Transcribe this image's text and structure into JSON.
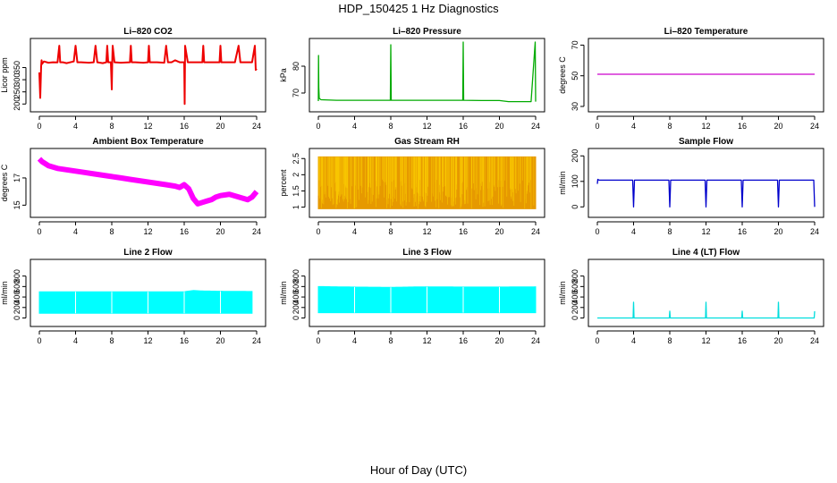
{
  "title": "HDP_150425  1 Hz Diagnostics",
  "xlabel": "Hour of Day (UTC)",
  "chart_data": [
    {
      "type": "line",
      "title": "Li–820 CO2",
      "ylabel": "Licor ppm",
      "color": "#ee0000",
      "xticks": [
        0,
        4,
        8,
        12,
        16,
        20,
        24
      ],
      "xlim": [
        0,
        24
      ],
      "yticks": [
        200,
        250,
        300,
        350
      ],
      "ylim": [
        190,
        455
      ],
      "series": [
        {
          "x": [
            0,
            0.1,
            0.2,
            0.25,
            0.3,
            0.5,
            1.0,
            1.5,
            2.0,
            2.2,
            2.3,
            2.6,
            3.0,
            3.8,
            4.0,
            4.2,
            4.6,
            5.5,
            6.0,
            6.2,
            6.4,
            7.0,
            7.4,
            7.5,
            7.6,
            7.9,
            8.0,
            8.05,
            8.1,
            8.3,
            9.0,
            10.0,
            10.1,
            10.2,
            10.6,
            11.5,
            12.0,
            12.1,
            12.2,
            13.0,
            13.8,
            14.0,
            14.2,
            14.6,
            15.0,
            15.5,
            16.0,
            16.05,
            16.1,
            16.4,
            17.0,
            18.0,
            18.1,
            18.2,
            19.0,
            19.9,
            20.0,
            20.1,
            20.5,
            21.0,
            21.6,
            22.0,
            22.2,
            22.8,
            23.5,
            23.8,
            23.9,
            24.0
          ],
          "y": [
            330,
            225,
            355,
            380,
            365,
            375,
            370,
            372,
            371,
            440,
            372,
            372,
            368,
            375,
            440,
            372,
            372,
            370,
            372,
            440,
            372,
            368,
            372,
            440,
            372,
            372,
            260,
            372,
            440,
            372,
            370,
            372,
            440,
            372,
            372,
            370,
            372,
            440,
            372,
            372,
            370,
            440,
            372,
            372,
            380,
            372,
            372,
            200,
            440,
            372,
            372,
            372,
            440,
            372,
            372,
            372,
            440,
            372,
            372,
            372,
            372,
            440,
            372,
            372,
            372,
            440,
            340,
            345
          ]
        }
      ]
    },
    {
      "type": "line",
      "title": "Li–820 Pressure",
      "ylabel": "kPa",
      "color": "#00aa00",
      "xticks": [
        0,
        4,
        8,
        12,
        16,
        20,
        24
      ],
      "xlim": [
        0,
        24
      ],
      "yticks": [
        70,
        80
      ],
      "ylim": [
        65,
        89
      ],
      "series": [
        {
          "x": [
            0,
            0.02,
            0.05,
            0.1,
            0.3,
            2,
            4,
            6,
            7.95,
            8.0,
            8.05,
            10,
            12,
            14,
            15.95,
            16.0,
            16.05,
            18,
            20,
            21,
            23.5,
            23.95,
            24.0
          ],
          "y": [
            67,
            84,
            72,
            68,
            67.5,
            67.3,
            67.3,
            67.3,
            67.3,
            88,
            67.3,
            67.3,
            67.3,
            67.3,
            67.3,
            89,
            67.3,
            67.2,
            67.2,
            66.8,
            66.8,
            89,
            66.8
          ]
        }
      ]
    },
    {
      "type": "line",
      "title": "Li–820 Temperature",
      "ylabel": "degrees C",
      "color": "#cc00cc",
      "xticks": [
        0,
        4,
        8,
        12,
        16,
        20,
        24
      ],
      "xlim": [
        0,
        24
      ],
      "yticks": [
        30,
        50,
        70
      ],
      "ylim": [
        30,
        72
      ],
      "series": [
        {
          "x": [
            0,
            24
          ],
          "y": [
            51,
            51
          ]
        }
      ]
    },
    {
      "type": "line",
      "title": "Ambient Box Temperature",
      "ylabel": "degrees C",
      "color": "#ff00ff",
      "xticks": [
        0,
        4,
        8,
        12,
        16,
        20,
        24
      ],
      "xlim": [
        0,
        24
      ],
      "yticks": [
        15,
        17
      ],
      "ylim": [
        14.5,
        18.9
      ],
      "series": [
        {
          "x": [
            0,
            0.3,
            1,
            2,
            3,
            4,
            5,
            6,
            7,
            8,
            9,
            10,
            11,
            12,
            13,
            14,
            15,
            15.5,
            16,
            16.5,
            17,
            17.5,
            18,
            18.5,
            19,
            19.5,
            20,
            21,
            22,
            23,
            23.5,
            24
          ],
          "y": [
            18.4,
            18.2,
            17.9,
            17.7,
            17.6,
            17.5,
            17.4,
            17.3,
            17.2,
            17.1,
            17.0,
            16.9,
            16.8,
            16.7,
            16.6,
            16.5,
            16.4,
            16.3,
            16.5,
            16.2,
            15.5,
            15.1,
            15.2,
            15.3,
            15.4,
            15.6,
            15.7,
            15.8,
            15.6,
            15.4,
            15.6,
            16.0
          ]
        }
      ]
    },
    {
      "type": "area",
      "title": "Gas Stream RH",
      "ylabel": "percent",
      "color": "#e69900",
      "xticks": [
        0,
        4,
        8,
        12,
        16,
        20,
        24
      ],
      "xlim": [
        0,
        24
      ],
      "yticks": [
        1.0,
        1.5,
        2.0,
        2.5
      ],
      "ylim": [
        0.85,
        2.7
      ],
      "series": [
        {
          "name": "max",
          "x": [
            0,
            24
          ],
          "y": [
            2.55,
            2.55
          ]
        },
        {
          "name": "min",
          "x": [
            0,
            24
          ],
          "y": [
            0.95,
            0.95
          ]
        }
      ]
    },
    {
      "type": "line",
      "title": "Sample Flow",
      "ylabel": "ml/min",
      "color": "#0000cc",
      "xticks": [
        0,
        4,
        8,
        12,
        16,
        20,
        24
      ],
      "xlim": [
        0,
        24
      ],
      "yticks": [
        0,
        100,
        200
      ],
      "ylim": [
        -20,
        215
      ],
      "series": [
        {
          "x": [
            0,
            0.05,
            0.2,
            3.9,
            4.0,
            4.1,
            7.9,
            8.0,
            8.1,
            11.9,
            12.0,
            12.1,
            15.9,
            16.0,
            16.1,
            19.9,
            20.0,
            20.1,
            23.9,
            24.0
          ],
          "y": [
            90,
            108,
            105,
            105,
            0,
            105,
            105,
            0,
            105,
            105,
            0,
            105,
            105,
            0,
            105,
            105,
            0,
            105,
            105,
            0
          ]
        }
      ]
    },
    {
      "type": "area",
      "title": "Line 2 Flow",
      "ylabel": "ml/min",
      "color": "#00ffff",
      "xticks": [
        0,
        4,
        8,
        12,
        16,
        20,
        24
      ],
      "xlim": [
        0,
        24
      ],
      "yticks": [
        0,
        200,
        400,
        600,
        800
      ],
      "ylim": [
        -60,
        1050
      ],
      "series": [
        {
          "name": "max",
          "x": [
            0,
            16,
            17,
            18,
            20,
            23.5
          ],
          "y": [
            500,
            500,
            525,
            515,
            510,
            505
          ]
        },
        {
          "name": "min",
          "x": [
            0,
            23.5
          ],
          "y": [
            90,
            90
          ]
        }
      ]
    },
    {
      "type": "area",
      "title": "Line 3 Flow",
      "ylabel": "ml/min",
      "color": "#00ffff",
      "xticks": [
        0,
        4,
        8,
        12,
        16,
        20,
        24
      ],
      "xlim": [
        0,
        24
      ],
      "yticks": [
        0,
        200,
        400,
        600,
        800
      ],
      "ylim": [
        -60,
        1050
      ],
      "series": [
        {
          "name": "max",
          "x": [
            0,
            4,
            8,
            12,
            16,
            20,
            24
          ],
          "y": [
            600,
            590,
            585,
            595,
            590,
            590,
            595
          ]
        },
        {
          "name": "min",
          "x": [
            0,
            24
          ],
          "y": [
            100,
            100
          ]
        }
      ]
    },
    {
      "type": "line",
      "title": "Line 4 (LT) Flow",
      "ylabel": "ml/min",
      "color": "#00dddd",
      "xticks": [
        0,
        4,
        8,
        12,
        16,
        20,
        24
      ],
      "xlim": [
        0,
        24
      ],
      "yticks": [
        0,
        200,
        400,
        600,
        800
      ],
      "ylim": [
        -60,
        1050
      ],
      "series": [
        {
          "x": [
            0,
            3.95,
            4.0,
            4.05,
            7.95,
            8.0,
            8.05,
            11.95,
            12.0,
            12.05,
            15.95,
            16.0,
            16.05,
            19.95,
            20.0,
            20.05,
            23.95,
            24.0
          ],
          "y": [
            0,
            0,
            300,
            0,
            0,
            130,
            0,
            0,
            300,
            0,
            0,
            130,
            0,
            0,
            300,
            0,
            0,
            130
          ]
        }
      ]
    }
  ]
}
